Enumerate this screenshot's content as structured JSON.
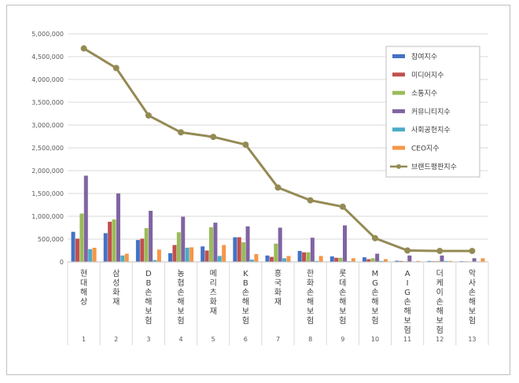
{
  "chart_data": {
    "type": "bar",
    "title": "",
    "xlabel": "",
    "ylabel": "",
    "ylim": [
      0,
      5000000
    ],
    "yticks": [
      "0",
      "500,000",
      "1,000,000",
      "1,500,000",
      "2,000,000",
      "2,500,000",
      "3,000,000",
      "3,500,000",
      "4,000,000",
      "4,500,000",
      "5,000,000"
    ],
    "ytick_values": [
      0,
      500000,
      1000000,
      1500000,
      2000000,
      2500000,
      3000000,
      3500000,
      4000000,
      4500000,
      5000000
    ],
    "categories": [
      "현대해상",
      "삼성화재",
      "DB손해보험",
      "농협손해보험",
      "메리츠화재",
      "KB손해보험",
      "흥국화재",
      "한화손해보험",
      "롯데손해보험",
      "MG손해보험",
      "AIG손해보험",
      "더케이손해보험",
      "악사손해보험"
    ],
    "category_numbers": [
      "1",
      "2",
      "3",
      "4",
      "5",
      "6",
      "7",
      "8",
      "9",
      "10",
      "11",
      "12",
      "13"
    ],
    "legend_position": "top-right",
    "series": [
      {
        "name": "참여지수",
        "kind": "bar",
        "color": "#4472C4",
        "values": [
          660000,
          630000,
          480000,
          190000,
          340000,
          540000,
          140000,
          240000,
          120000,
          100000,
          25000,
          20000,
          15000
        ]
      },
      {
        "name": "미디어지수",
        "kind": "bar",
        "color": "#C0504D",
        "values": [
          510000,
          880000,
          510000,
          370000,
          250000,
          540000,
          110000,
          210000,
          90000,
          60000,
          20000,
          15000,
          12000
        ]
      },
      {
        "name": "소통지수",
        "kind": "bar",
        "color": "#9BBB59",
        "values": [
          1060000,
          930000,
          740000,
          650000,
          760000,
          430000,
          400000,
          210000,
          90000,
          80000,
          15000,
          20000,
          10000
        ]
      },
      {
        "name": "커뮤니티지수",
        "kind": "bar",
        "color": "#8064A2",
        "values": [
          1890000,
          1500000,
          1120000,
          990000,
          860000,
          780000,
          750000,
          530000,
          800000,
          180000,
          140000,
          140000,
          80000
        ]
      },
      {
        "name": "사회공헌지수",
        "kind": "bar",
        "color": "#4BACC6",
        "values": [
          280000,
          140000,
          40000,
          310000,
          130000,
          50000,
          80000,
          20000,
          15000,
          20000,
          10000,
          20000,
          10000
        ]
      },
      {
        "name": "CEO지수",
        "kind": "bar",
        "color": "#F79646",
        "values": [
          310000,
          180000,
          270000,
          320000,
          370000,
          170000,
          130000,
          130000,
          80000,
          60000,
          20000,
          20000,
          80000
        ]
      },
      {
        "name": "브랜드평판지수",
        "kind": "line",
        "color": "#948A54",
        "values": [
          4680000,
          4250000,
          3210000,
          2840000,
          2740000,
          2570000,
          1630000,
          1350000,
          1210000,
          520000,
          250000,
          240000,
          240000
        ]
      }
    ]
  }
}
